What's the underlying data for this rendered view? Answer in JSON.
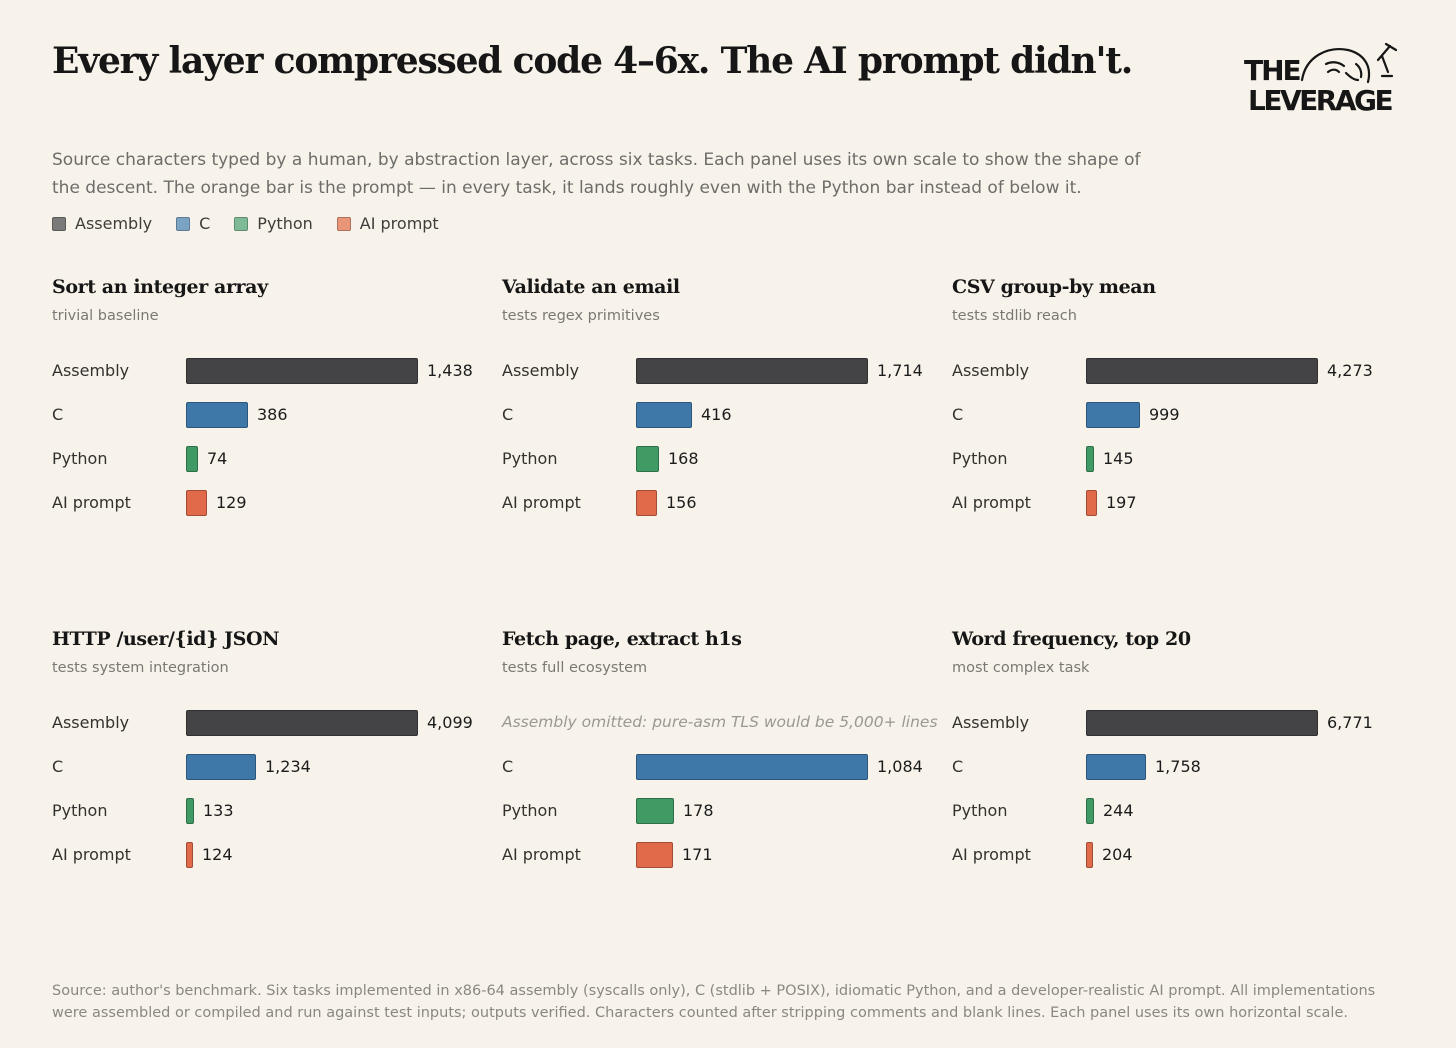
{
  "title": "Every layer compressed code 4–6x. The AI prompt didn't.",
  "logo": {
    "line1": "THE",
    "line2": "LEVERAGE"
  },
  "subtitle": "Source characters typed by a human, by abstraction layer, across six tasks. Each panel uses its own scale to show the shape of the descent. The orange bar is the prompt — in every task, it lands roughly even with the Python bar instead of below it.",
  "legend": [
    {
      "label": "Assembly",
      "color": "#7a7a7a"
    },
    {
      "label": "C",
      "color": "#7ba3c4"
    },
    {
      "label": "Python",
      "color": "#7fba96"
    },
    {
      "label": "AI prompt",
      "color": "#e8957a"
    }
  ],
  "colors": {
    "Assembly": "#444446",
    "C": "#3e78a9",
    "Python": "#3f9a64",
    "AI prompt": "#e06a4a"
  },
  "chart_data": [
    {
      "type": "bar",
      "orientation": "horizontal",
      "title": "Sort an integer array",
      "subtitle": "trivial baseline",
      "categories": [
        "Assembly",
        "C",
        "Python",
        "AI prompt"
      ],
      "values": [
        1438,
        386,
        74,
        129
      ],
      "value_labels": [
        "1,438",
        "386",
        "74",
        "129"
      ]
    },
    {
      "type": "bar",
      "orientation": "horizontal",
      "title": "Validate an email",
      "subtitle": "tests regex primitives",
      "categories": [
        "Assembly",
        "C",
        "Python",
        "AI prompt"
      ],
      "values": [
        1714,
        416,
        168,
        156
      ],
      "value_labels": [
        "1,714",
        "416",
        "168",
        "156"
      ]
    },
    {
      "type": "bar",
      "orientation": "horizontal",
      "title": "CSV group-by mean",
      "subtitle": "tests stdlib reach",
      "categories": [
        "Assembly",
        "C",
        "Python",
        "AI prompt"
      ],
      "values": [
        4273,
        999,
        145,
        197
      ],
      "value_labels": [
        "4,273",
        "999",
        "145",
        "197"
      ]
    },
    {
      "type": "bar",
      "orientation": "horizontal",
      "title": "HTTP /user/{id} JSON",
      "subtitle": "tests system integration",
      "categories": [
        "Assembly",
        "C",
        "Python",
        "AI prompt"
      ],
      "values": [
        4099,
        1234,
        133,
        124
      ],
      "value_labels": [
        "4,099",
        "1,234",
        "133",
        "124"
      ]
    },
    {
      "type": "bar",
      "orientation": "horizontal",
      "title": "Fetch page, extract h1s",
      "subtitle": "tests full ecosystem",
      "categories": [
        "Assembly",
        "C",
        "Python",
        "AI prompt"
      ],
      "values": [
        null,
        1084,
        178,
        171
      ],
      "value_labels": [
        "",
        "1,084",
        "178",
        "171"
      ],
      "omitted_note": "Assembly omitted: pure-asm TLS would be 5,000+ lines"
    },
    {
      "type": "bar",
      "orientation": "horizontal",
      "title": "Word frequency, top 20",
      "subtitle": "most complex task",
      "categories": [
        "Assembly",
        "C",
        "Python",
        "AI prompt"
      ],
      "values": [
        6771,
        1758,
        244,
        204
      ],
      "value_labels": [
        "6,771",
        "1,758",
        "244",
        "204"
      ]
    }
  ],
  "source": "Source: author's benchmark. Six tasks implemented in x86-64 assembly (syscalls only), C (stdlib + POSIX), idiomatic Python, and a developer-realistic AI prompt. All implementations were assembled or compiled and run against test inputs; outputs verified. Characters counted after stripping comments and blank lines. Each panel uses its own horizontal scale."
}
